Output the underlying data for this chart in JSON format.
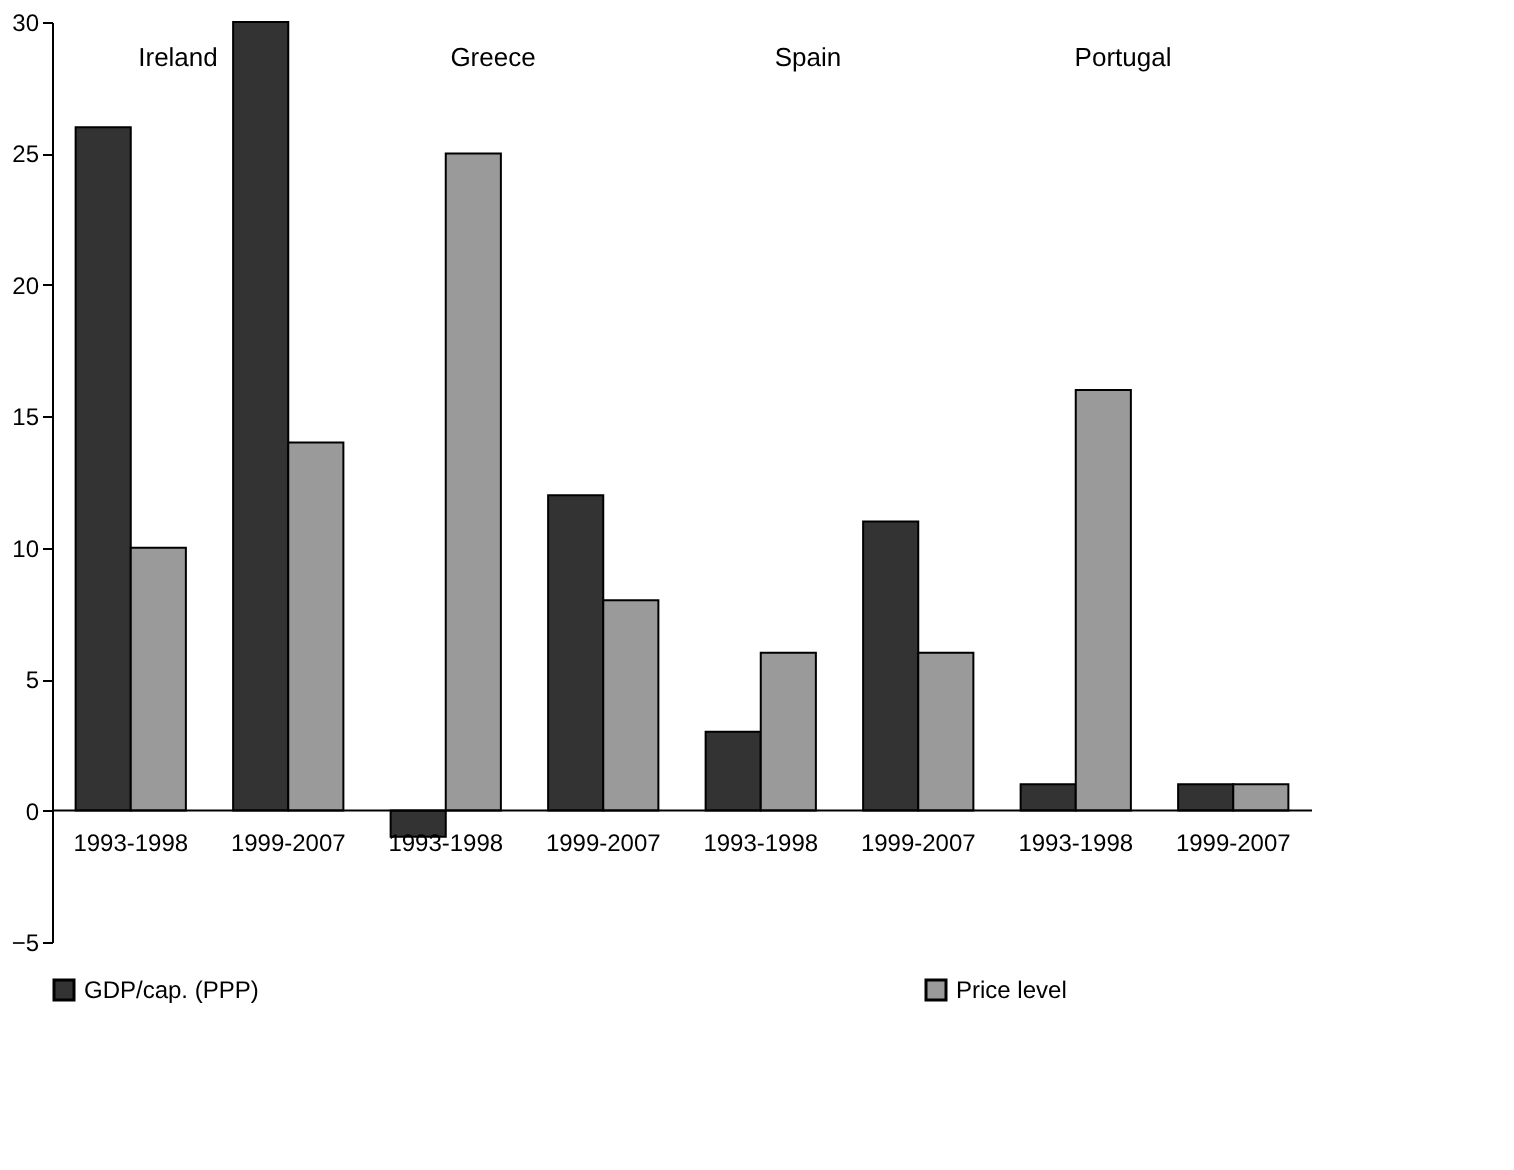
{
  "chart_data": {
    "type": "bar",
    "categories": [
      "1993-1998",
      "1999-2007",
      "1993-1998",
      "1999-2007",
      "1993-1998",
      "1999-2007",
      "1993-1998",
      "1999-2007"
    ],
    "series": [
      {
        "name": "GDP/cap. (PPP)",
        "color": "#333333",
        "values": [
          26,
          30,
          -1,
          12,
          3,
          11,
          1,
          1
        ]
      },
      {
        "name": "Price level",
        "color": "#9a9a9a",
        "values": [
          10,
          14,
          25,
          8,
          6,
          6,
          16,
          1
        ]
      }
    ],
    "annotations": [
      "Ireland",
      "Greece",
      "Spain",
      "Portugal"
    ],
    "ylim": [
      -5,
      30
    ],
    "yticks": [
      -5,
      0,
      5,
      10,
      15,
      20,
      25,
      30
    ],
    "grid": false,
    "legend": "bottom"
  }
}
